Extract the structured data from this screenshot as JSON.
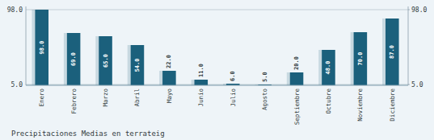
{
  "chart_data": {
    "type": "bar",
    "title": "Precipitaciones Medias en terrateig",
    "categories": [
      "Enero",
      "Febrero",
      "Marzo",
      "Abril",
      "Mayo",
      "Junio",
      "Julio",
      "Agosto",
      "Septiembre",
      "Octubre",
      "Noviembre",
      "Diciembre"
    ],
    "values": [
      98,
      69,
      65,
      54,
      22,
      11,
      6,
      5,
      20,
      48,
      70,
      87
    ],
    "value_labels": [
      "98.0",
      "69.0",
      "65.0",
      "54.0",
      "22.0",
      "11.0",
      "6.0",
      "5.0",
      "20.0",
      "48.0",
      "70.0",
      "87.0"
    ],
    "color": "#1b607c",
    "ylim": [
      4,
      102
    ],
    "yticks": [
      {
        "value": 5,
        "label": "5.0"
      },
      {
        "value": 98,
        "label": "98.0"
      }
    ],
    "y2lim": [
      4,
      102
    ],
    "y2ticks": [
      {
        "value": 5,
        "label": "5.0"
      },
      {
        "value": 98,
        "label": "98.0"
      }
    ],
    "grid": true,
    "data_labels": true
  }
}
